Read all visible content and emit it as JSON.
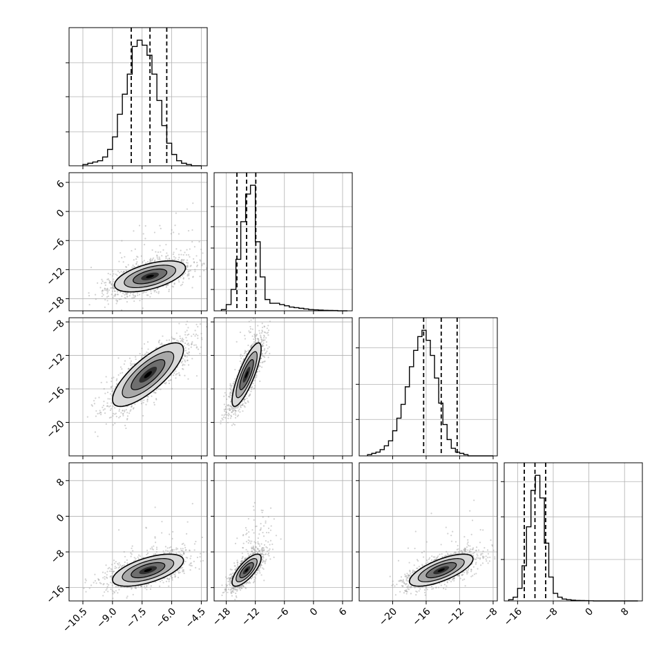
{
  "colors": {
    "background": "#ffffff",
    "axes": "#000000",
    "grid": "#b0b0b0",
    "histogram": "#000000",
    "quantile_lines": "#000000",
    "scatter_points": "#9a9a9a",
    "density_levels": [
      "#d9d9d9",
      "#a8a8a8",
      "#6f6f6f",
      "#2e2e2e",
      "#000000"
    ]
  },
  "chart_data": {
    "type": "scatter",
    "subtype": "corner-plot",
    "title": "",
    "parameters": [
      {
        "name": "",
        "range": [
          -11.2,
          -4.2
        ],
        "ticks": [
          -10.5,
          -9.0,
          -7.5,
          -6.0,
          -4.5
        ],
        "tick_labels": [
          "−10.5",
          "−9.0",
          "−7.5",
          "−6.0",
          "−4.5"
        ]
      },
      {
        "name": "",
        "range": [
          -20.5,
          8
        ],
        "ticks": [
          -18,
          -12,
          -6,
          0,
          6
        ],
        "tick_labels": [
          "−18",
          "−12",
          "−6",
          "0",
          "6"
        ]
      },
      {
        "name": "",
        "range": [
          -24,
          -7.5
        ],
        "ticks": [
          -20,
          -16,
          -12,
          -8
        ],
        "tick_labels": [
          "−20",
          "−16",
          "−12",
          "−8"
        ]
      },
      {
        "name": "",
        "range": [
          -19,
          12
        ],
        "ticks": [
          -16,
          -8,
          0,
          8
        ],
        "tick_labels": [
          "−16",
          "−8",
          "0",
          "8"
        ]
      }
    ],
    "grid": true,
    "quantiles": [
      0.16,
      0.5,
      0.84
    ],
    "histograms": [
      {
        "parameter": 0,
        "quantile_values": [
          -8.05,
          -7.1,
          -6.25
        ],
        "hist_ticks": [
          0.27,
          0.55,
          0.82
        ],
        "bin_edges": [
          -10.5,
          -10.25,
          -10.0,
          -9.75,
          -9.5,
          -9.25,
          -9.0,
          -8.75,
          -8.5,
          -8.25,
          -8.0,
          -7.75,
          -7.5,
          -7.25,
          -7.0,
          -6.75,
          -6.5,
          -6.25,
          -6.0,
          -5.75,
          -5.5,
          -5.25,
          -5.0,
          -4.75,
          -4.5
        ],
        "counts": [
          0.01,
          0.02,
          0.03,
          0.04,
          0.07,
          0.13,
          0.23,
          0.41,
          0.57,
          0.73,
          0.95,
          1.0,
          0.96,
          0.88,
          0.73,
          0.52,
          0.32,
          0.18,
          0.09,
          0.04,
          0.02,
          0.01,
          0.0,
          0.0
        ]
      },
      {
        "parameter": 1,
        "quantile_values": [
          -15.8,
          -13.8,
          -11.9
        ],
        "hist_ticks": [
          0.17,
          0.33,
          0.5,
          0.67,
          0.83
        ],
        "bin_edges": [
          -19,
          -18,
          -17,
          -16,
          -15,
          -14,
          -13,
          -12,
          -11,
          -10,
          -9,
          -8,
          -7,
          -6,
          -5,
          -4,
          -3,
          -2,
          -1,
          0,
          1,
          2,
          3,
          4,
          5,
          6,
          7
        ],
        "counts": [
          0.01,
          0.05,
          0.17,
          0.41,
          0.71,
          0.93,
          1.0,
          0.55,
          0.27,
          0.09,
          0.06,
          0.06,
          0.05,
          0.04,
          0.03,
          0.025,
          0.02,
          0.015,
          0.01,
          0.008,
          0.006,
          0.004,
          0.003,
          0.002,
          0.0,
          0.0
        ]
      },
      {
        "parameter": 2,
        "quantile_values": [
          -16.3,
          -14.2,
          -12.3
        ],
        "hist_ticks": [
          0.29,
          0.57,
          0.86
        ],
        "bin_edges": [
          -23,
          -22.5,
          -22,
          -21.5,
          -21,
          -20.5,
          -20,
          -19.5,
          -19,
          -18.5,
          -18,
          -17.5,
          -17,
          -16.5,
          -16,
          -15.5,
          -15,
          -14.5,
          -14,
          -13.5,
          -13,
          -12.5,
          -12,
          -11.5,
          -11,
          -10.5,
          -10,
          -9.5,
          -9,
          -8.5,
          -8
        ],
        "counts": [
          0.01,
          0.02,
          0.03,
          0.05,
          0.08,
          0.12,
          0.2,
          0.3,
          0.41,
          0.55,
          0.71,
          0.84,
          0.95,
          1.0,
          0.92,
          0.8,
          0.62,
          0.42,
          0.25,
          0.13,
          0.06,
          0.03,
          0.02,
          0.01,
          0.0,
          0.0,
          0.0,
          0.0,
          0.0,
          0.0
        ]
      },
      {
        "parameter": 3,
        "quantile_values": [
          -14.5,
          -12.1,
          -9.7
        ],
        "hist_ticks": [
          0.33,
          0.67,
          0.95
        ],
        "bin_edges": [
          -18,
          -17,
          -16,
          -15,
          -14,
          -13,
          -12,
          -11,
          -10,
          -9,
          -8,
          -7,
          -6,
          -5,
          -4,
          -3,
          -2,
          -1,
          0,
          1,
          2,
          3,
          4,
          5,
          6,
          7,
          8,
          9,
          10,
          11
        ],
        "counts": [
          0.01,
          0.03,
          0.1,
          0.28,
          0.59,
          0.88,
          1.0,
          0.82,
          0.46,
          0.19,
          0.06,
          0.03,
          0.015,
          0.01,
          0.006,
          0.004,
          0.003,
          0.002,
          0.001,
          0.0,
          0.0,
          0.0,
          0.0,
          0.0,
          0.0,
          0.0,
          0.0,
          0.0,
          0.0
        ]
      }
    ],
    "pairs": [
      {
        "x_param": 0,
        "y_param": 1,
        "mean": [
          -7.1,
          -13.4
        ],
        "sd": [
          0.9,
          1.6
        ],
        "rho": 0.55,
        "tail_fraction": 0.1
      },
      {
        "x_param": 0,
        "y_param": 2,
        "mean": [
          -7.2,
          -14.3
        ],
        "sd": [
          0.9,
          1.9
        ],
        "rho": 0.78,
        "tail_fraction": 0.0
      },
      {
        "x_param": 1,
        "y_param": 2,
        "mean": [
          -13.8,
          -14.3
        ],
        "sd": [
          1.5,
          1.9
        ],
        "rho": 0.82,
        "tail_fraction": 0.08
      },
      {
        "x_param": 0,
        "y_param": 3,
        "mean": [
          -7.2,
          -12.1
        ],
        "sd": [
          0.9,
          1.8
        ],
        "rho": 0.6,
        "tail_fraction": 0.04
      },
      {
        "x_param": 1,
        "y_param": 3,
        "mean": [
          -13.8,
          -12.1
        ],
        "sd": [
          1.5,
          1.8
        ],
        "rho": 0.75,
        "tail_fraction": 0.12
      },
      {
        "x_param": 2,
        "y_param": 3,
        "mean": [
          -14.2,
          -12.1
        ],
        "sd": [
          1.9,
          1.8
        ],
        "rho": 0.7,
        "tail_fraction": 0.05
      }
    ]
  }
}
